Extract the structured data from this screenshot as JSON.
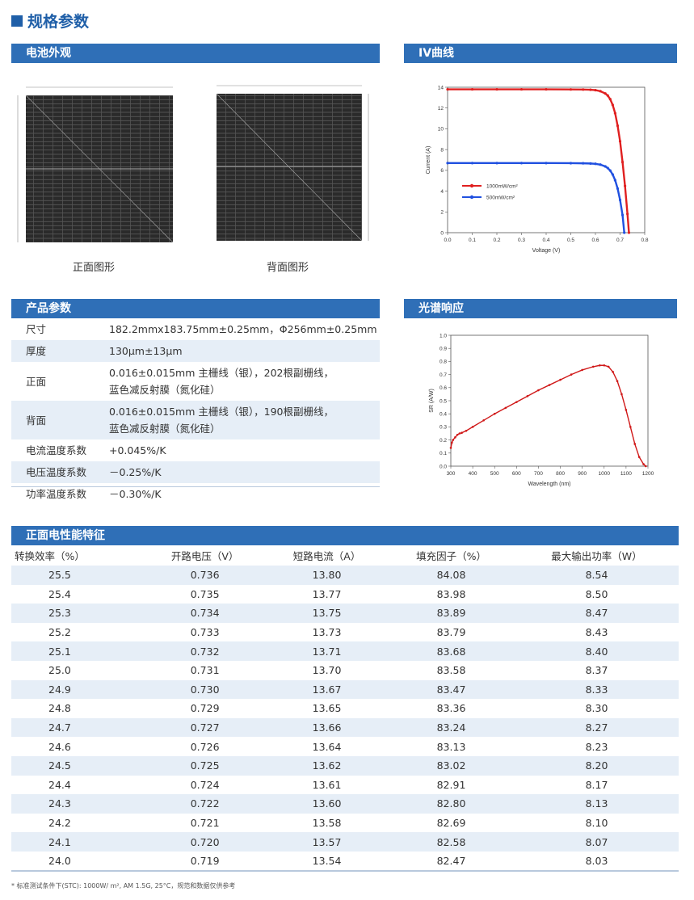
{
  "page_title": "规格参数",
  "sections": {
    "cell_appearance": "电池外观",
    "iv_curve": "IV曲线",
    "product_params": "产品参数",
    "spectral_response": "光谱响应",
    "front_perf": "正面电性能特征"
  },
  "images": {
    "front_caption": "正面图形",
    "back_caption": "背面图形"
  },
  "params": [
    {
      "key": "尺寸",
      "value": "182.2mmx183.75mm±0.25mm，Φ256mm±0.25mm"
    },
    {
      "key": "厚度",
      "value": "130μm±13μm"
    },
    {
      "key": "正面",
      "value": "0.016±0.015mm 主栅线（银），202根副栅线，",
      "value2": "蓝色减反射膜（氮化硅）"
    },
    {
      "key": "背面",
      "value": "0.016±0.015mm 主栅线（银），190根副栅线，",
      "value2": "蓝色减反射膜（氮化硅）"
    },
    {
      "key": "电流温度系数",
      "value": "+0.045%/K"
    },
    {
      "key": "电压温度系数",
      "value": "－0.25%/K"
    },
    {
      "key": "功率温度系数",
      "value": "－0.30%/K"
    }
  ],
  "perf_table": {
    "headers": [
      "转换效率（%）",
      "开路电压（V）",
      "短路电流（A）",
      "填充因子（%）",
      "最大输出功率（W）"
    ],
    "rows": [
      [
        "25.5",
        "0.736",
        "13.80",
        "84.08",
        "8.54"
      ],
      [
        "25.4",
        "0.735",
        "13.77",
        "83.98",
        "8.50"
      ],
      [
        "25.3",
        "0.734",
        "13.75",
        "83.89",
        "8.47"
      ],
      [
        "25.2",
        "0.733",
        "13.73",
        "83.79",
        "8.43"
      ],
      [
        "25.1",
        "0.732",
        "13.71",
        "83.68",
        "8.40"
      ],
      [
        "25.0",
        "0.731",
        "13.70",
        "83.58",
        "8.37"
      ],
      [
        "24.9",
        "0.730",
        "13.67",
        "83.47",
        "8.33"
      ],
      [
        "24.8",
        "0.729",
        "13.65",
        "83.36",
        "8.30"
      ],
      [
        "24.7",
        "0.727",
        "13.66",
        "83.24",
        "8.27"
      ],
      [
        "24.6",
        "0.726",
        "13.64",
        "83.13",
        "8.23"
      ],
      [
        "24.5",
        "0.725",
        "13.62",
        "83.02",
        "8.20"
      ],
      [
        "24.4",
        "0.724",
        "13.61",
        "82.91",
        "8.17"
      ],
      [
        "24.3",
        "0.722",
        "13.60",
        "82.80",
        "8.13"
      ],
      [
        "24.2",
        "0.721",
        "13.58",
        "82.69",
        "8.10"
      ],
      [
        "24.1",
        "0.720",
        "13.57",
        "82.58",
        "8.07"
      ],
      [
        "24.0",
        "0.719",
        "13.54",
        "82.47",
        "8.03"
      ]
    ]
  },
  "footnote": "* 标准测试条件下(STC): 1000W/ m², AM 1.5G, 25°C，规范和数据仅供参考",
  "chart_data": [
    {
      "type": "line",
      "xlabel": "Voltage (V)",
      "ylabel": "Current (A)",
      "xlim": [
        0,
        0.8
      ],
      "ylim": [
        0,
        14
      ],
      "xticks": [
        "0.0",
        "0.1",
        "0.2",
        "0.3",
        "0.4",
        "0.5",
        "0.6",
        "0.7",
        "0.8"
      ],
      "yticks": [
        "0",
        "2",
        "4",
        "6",
        "8",
        "10",
        "12",
        "14"
      ],
      "legend_position": "lower-left",
      "series": [
        {
          "name": "1000mW/cm²",
          "color": "#e02020",
          "x": [
            0,
            0.1,
            0.2,
            0.3,
            0.4,
            0.5,
            0.55,
            0.58,
            0.6,
            0.62,
            0.64,
            0.65,
            0.66,
            0.67,
            0.68,
            0.69,
            0.7,
            0.71,
            0.72,
            0.73,
            0.736
          ],
          "y": [
            13.8,
            13.8,
            13.8,
            13.8,
            13.8,
            13.79,
            13.78,
            13.76,
            13.72,
            13.62,
            13.4,
            13.2,
            12.85,
            12.3,
            11.5,
            10.3,
            8.8,
            6.8,
            4.5,
            1.8,
            0
          ]
        },
        {
          "name": "500mW/cm²",
          "color": "#2050e0",
          "x": [
            0,
            0.1,
            0.2,
            0.3,
            0.4,
            0.5,
            0.55,
            0.58,
            0.6,
            0.62,
            0.64,
            0.65,
            0.66,
            0.67,
            0.68,
            0.69,
            0.7,
            0.71,
            0.717
          ],
          "y": [
            6.7,
            6.7,
            6.7,
            6.7,
            6.7,
            6.69,
            6.68,
            6.66,
            6.63,
            6.55,
            6.38,
            6.22,
            5.98,
            5.6,
            5.05,
            4.25,
            3.15,
            1.7,
            0
          ]
        }
      ]
    },
    {
      "type": "line",
      "xlabel": "Wavelength (nm)",
      "ylabel": "SR (A/W)",
      "xlim": [
        300,
        1200
      ],
      "ylim": [
        0,
        1.0
      ],
      "xticks": [
        "300",
        "400",
        "500",
        "600",
        "700",
        "800",
        "900",
        "1000",
        "1100",
        "1200"
      ],
      "yticks": [
        "0.0",
        "0.1",
        "0.2",
        "0.3",
        "0.4",
        "0.5",
        "0.6",
        "0.7",
        "0.8",
        "0.9",
        "1.0"
      ],
      "series": [
        {
          "color": "#d01818",
          "x": [
            300,
            305,
            310,
            320,
            330,
            340,
            350,
            370,
            400,
            450,
            500,
            550,
            600,
            650,
            700,
            750,
            800,
            850,
            900,
            950,
            980,
            1000,
            1020,
            1040,
            1060,
            1080,
            1100,
            1120,
            1140,
            1160,
            1180,
            1190
          ],
          "y": [
            0.14,
            0.18,
            0.2,
            0.22,
            0.24,
            0.25,
            0.255,
            0.27,
            0.3,
            0.35,
            0.4,
            0.445,
            0.49,
            0.535,
            0.58,
            0.62,
            0.66,
            0.7,
            0.735,
            0.76,
            0.77,
            0.77,
            0.76,
            0.72,
            0.65,
            0.55,
            0.43,
            0.3,
            0.17,
            0.07,
            0.015,
            0.0
          ]
        }
      ]
    }
  ]
}
